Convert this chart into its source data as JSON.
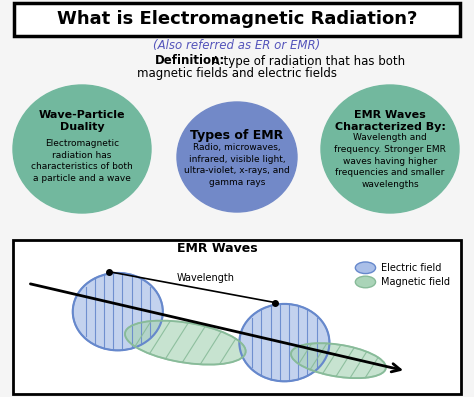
{
  "title": "What is Electromagnetic Radiation?",
  "subtitle": "(Also referred as ER or EMR)",
  "definition_bold": "Definition:",
  "definition_rest": " A type of radiation that has both\nmagnetic fields and electric fields",
  "circle1_title": "Wave-Particle\nDuality",
  "circle1_text": "Electromagnetic\nradiation has\ncharacteristics of both\na particle and a wave",
  "circle2_title": "Types of EMR",
  "circle2_text": "Radio, microwaves,\ninfrared, visible light,\nultra-violet, x-rays, and\ngamma rays",
  "circle3_title": "EMR Waves\nCharacterized By:",
  "circle3_text": "Wavelength and\nfrequency. Stronger EMR\nwaves having higher\nfrequencies and smaller\nwavelengths",
  "wave_title": "EMR Waves",
  "wavelength_label": "Wavelength",
  "legend1": "Electric field",
  "legend2": "Magnetic field",
  "bg_color": "#f5f5f5",
  "green_color": "#72b89e",
  "blue_circle_color": "#7289c8",
  "blue_wave_color": "#6688cc",
  "blue_wave_fill": "#aabfe8",
  "green_wave_color": "#88bb99",
  "green_wave_fill": "#aad4b8",
  "subtitle_color": "#5555bb",
  "title_fontsize": 13,
  "subtitle_fontsize": 8.5,
  "def_fontsize": 8.5,
  "circle_title_fontsize": 8,
  "circle_text_fontsize": 6.5,
  "wave_title_fontsize": 9
}
